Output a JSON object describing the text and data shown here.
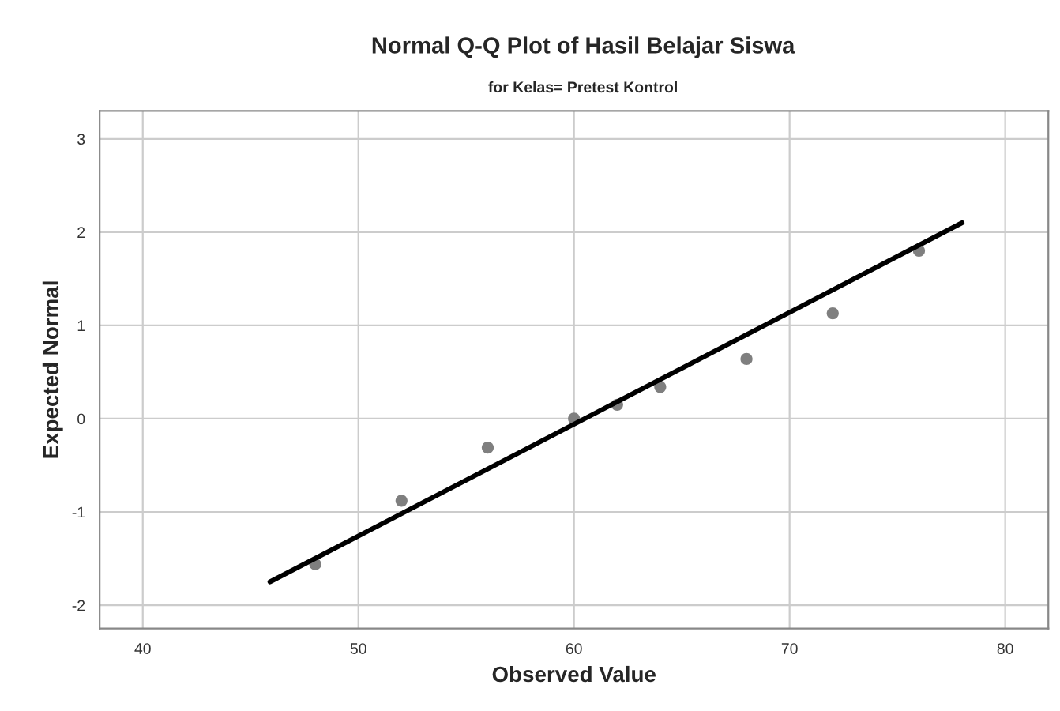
{
  "chart_data": {
    "type": "scatter",
    "title": "Normal Q-Q Plot of Hasil Belajar Siswa",
    "subtitle": "for Kelas= Pretest Kontrol",
    "xlabel": "Observed Value",
    "ylabel": "Expected Normal",
    "series": [
      {
        "color": "#7f7f7f",
        "x": [
          48,
          52,
          56,
          60,
          62,
          64,
          68,
          72,
          76
        ],
        "values": [
          -1.56,
          -0.88,
          -0.31,
          0,
          0.15,
          0.34,
          0.64,
          1.13,
          1.8
        ]
      },
      {
        "type": "line",
        "color": "#000000",
        "x": [
          45.9,
          78
        ],
        "values": [
          -1.75,
          2.1
        ]
      }
    ],
    "xlim": [
      38,
      82
    ],
    "ylim": [
      -2.25,
      3.3
    ],
    "xticks": [
      40,
      50,
      60,
      70,
      80
    ],
    "yticks": [
      -2,
      -1,
      0,
      1,
      2,
      3
    ],
    "grid": true,
    "legend": false
  }
}
